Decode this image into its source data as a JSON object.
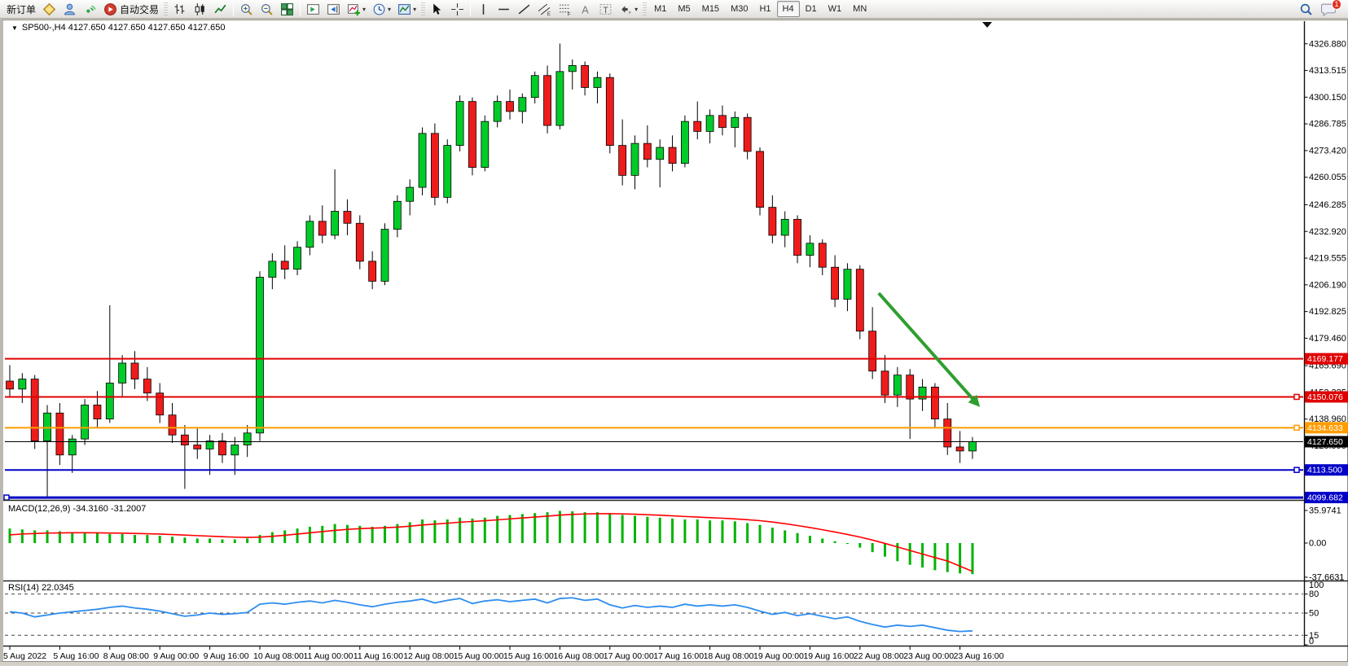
{
  "toolbar": {
    "new_order": "新订单",
    "autotrade": "自动交易",
    "timeframes": [
      "M1",
      "M5",
      "M15",
      "M30",
      "H1",
      "H4",
      "D1",
      "W1",
      "MN"
    ],
    "active_timeframe": "H4",
    "notification_count": "1"
  },
  "window": {
    "title": "SP500-,H4  4127.650 4127.650 4127.650 4127.650"
  },
  "chart_data": {
    "type": "candlestick",
    "symbol": "SP500-",
    "timeframe": "H4",
    "quote_line": "4127.650 4127.650 4127.650 4127.650",
    "price_axis": {
      "max": 4332.5,
      "min": 4098.9,
      "ticks": [
        "4326.880",
        "4313.515",
        "4300.150",
        "4286.785",
        "4273.420",
        "4260.055",
        "4246.285",
        "4232.920",
        "4219.555",
        "4206.190",
        "4192.825",
        "4179.460",
        "4165.690",
        "4152.325",
        "4138.960",
        "4125.595",
        "4112.230",
        "4098.865"
      ]
    },
    "hlines": [
      {
        "price": 4169.177,
        "label": "4169.177",
        "color": "#e00000",
        "width": 2,
        "handle": "none"
      },
      {
        "price": 4150.076,
        "label": "4150.076",
        "color": "#e00000",
        "width": 2,
        "handle": "right"
      },
      {
        "price": 4134.633,
        "label": "4134.633",
        "color": "#ff9c00",
        "width": 2,
        "handle": "right"
      },
      {
        "price": 4127.65,
        "label": "4127.650",
        "color": "#000000",
        "width": 1,
        "handle": "none"
      },
      {
        "price": 4113.5,
        "label": "4113.500",
        "color": "#0000c8",
        "width": 2,
        "handle": "right"
      },
      {
        "price": 4099.682,
        "label": "4099.682",
        "color": "#0000c8",
        "width": 3,
        "handle": "left"
      }
    ],
    "candles": [
      [
        4158,
        4166,
        4150,
        4154
      ],
      [
        4154,
        4162,
        4147,
        4159
      ],
      [
        4159,
        4161,
        4124,
        4128
      ],
      [
        4128,
        4146,
        4100,
        4142
      ],
      [
        4142,
        4147,
        4116,
        4121
      ],
      [
        4121,
        4131,
        4112,
        4129
      ],
      [
        4129,
        4149,
        4126,
        4146
      ],
      [
        4146,
        4153,
        4135,
        4139
      ],
      [
        4139,
        4196,
        4137,
        4157
      ],
      [
        4157,
        4171,
        4150,
        4167
      ],
      [
        4167,
        4173,
        4154,
        4159
      ],
      [
        4159,
        4165,
        4148,
        4152
      ],
      [
        4152,
        4157,
        4137,
        4141
      ],
      [
        4141,
        4147,
        4127,
        4131
      ],
      [
        4131,
        4136,
        4104,
        4126
      ],
      [
        4126,
        4135,
        4119,
        4124
      ],
      [
        4124,
        4131,
        4111,
        4128
      ],
      [
        4128,
        4132,
        4117,
        4121
      ],
      [
        4121,
        4130,
        4111,
        4126
      ],
      [
        4126,
        4136,
        4120,
        4132
      ],
      [
        4132,
        4213,
        4128,
        4210
      ],
      [
        4210,
        4222,
        4204,
        4218
      ],
      [
        4218,
        4226,
        4209,
        4214
      ],
      [
        4214,
        4228,
        4211,
        4225
      ],
      [
        4225,
        4241,
        4221,
        4238
      ],
      [
        4238,
        4246,
        4227,
        4231
      ],
      [
        4231,
        4264,
        4229,
        4243
      ],
      [
        4243,
        4249,
        4231,
        4237
      ],
      [
        4237,
        4241,
        4214,
        4218
      ],
      [
        4218,
        4223,
        4204,
        4208
      ],
      [
        4208,
        4237,
        4206,
        4234
      ],
      [
        4234,
        4251,
        4230,
        4248
      ],
      [
        4248,
        4259,
        4241,
        4255
      ],
      [
        4255,
        4285,
        4251,
        4282
      ],
      [
        4282,
        4287,
        4246,
        4250
      ],
      [
        4250,
        4279,
        4247,
        4276
      ],
      [
        4276,
        4301,
        4273,
        4298
      ],
      [
        4298,
        4300,
        4261,
        4265
      ],
      [
        4265,
        4291,
        4263,
        4288
      ],
      [
        4288,
        4301,
        4285,
        4298
      ],
      [
        4298,
        4304,
        4289,
        4293
      ],
      [
        4293,
        4302,
        4287,
        4300
      ],
      [
        4300,
        4313,
        4297,
        4311
      ],
      [
        4311,
        4316,
        4282,
        4286
      ],
      [
        4286,
        4327,
        4284,
        4313
      ],
      [
        4313,
        4319,
        4304,
        4316
      ],
      [
        4316,
        4318,
        4301,
        4305
      ],
      [
        4305,
        4313,
        4297,
        4310
      ],
      [
        4310,
        4312,
        4272,
        4276
      ],
      [
        4276,
        4289,
        4256,
        4261
      ],
      [
        4261,
        4281,
        4254,
        4277
      ],
      [
        4277,
        4286,
        4265,
        4269
      ],
      [
        4269,
        4279,
        4255,
        4275
      ],
      [
        4275,
        4281,
        4263,
        4267
      ],
      [
        4267,
        4291,
        4265,
        4288
      ],
      [
        4288,
        4298,
        4279,
        4283
      ],
      [
        4283,
        4294,
        4277,
        4291
      ],
      [
        4291,
        4296,
        4281,
        4285
      ],
      [
        4285,
        4293,
        4275,
        4290
      ],
      [
        4290,
        4292,
        4269,
        4273
      ],
      [
        4273,
        4275,
        4241,
        4245
      ],
      [
        4245,
        4251,
        4227,
        4231
      ],
      [
        4231,
        4243,
        4225,
        4239
      ],
      [
        4239,
        4241,
        4217,
        4221
      ],
      [
        4221,
        4231,
        4215,
        4227
      ],
      [
        4227,
        4229,
        4211,
        4215
      ],
      [
        4215,
        4221,
        4195,
        4199
      ],
      [
        4199,
        4217,
        4193,
        4214
      ],
      [
        4214,
        4216,
        4179,
        4183
      ],
      [
        4183,
        4195,
        4159,
        4163
      ],
      [
        4163,
        4171,
        4147,
        4151
      ],
      [
        4151,
        4165,
        4145,
        4161
      ],
      [
        4161,
        4164,
        4129,
        4149
      ],
      [
        4149,
        4159,
        4143,
        4155
      ],
      [
        4155,
        4157,
        4135,
        4139
      ],
      [
        4139,
        4147,
        4121,
        4125
      ],
      [
        4125,
        4133,
        4117,
        4123
      ],
      [
        4123,
        4130,
        4119,
        4127.65
      ]
    ],
    "macd": {
      "label": "MACD(12,26,9) -34.3160 -31.2007",
      "ticks": [
        {
          "v": 35.9741,
          "label": "35.9741"
        },
        {
          "v": 0,
          "label": "0.00"
        },
        {
          "v": -37.6631,
          "label": "-37.6631"
        }
      ],
      "hist_color": "#00b400",
      "signal_color": "#ff0000",
      "hist": [
        16,
        15,
        14,
        14,
        13,
        12,
        12,
        11,
        10,
        10,
        9,
        9,
        8,
        7,
        6,
        5,
        5,
        4,
        4,
        5,
        9,
        12,
        14,
        16,
        18,
        19,
        21,
        20,
        19,
        18,
        19,
        21,
        23,
        26,
        25,
        26,
        28,
        27,
        28,
        30,
        31,
        32,
        33,
        34,
        35.5,
        35,
        34,
        34,
        33,
        31,
        30,
        29,
        28,
        27,
        26,
        26,
        25,
        25,
        24,
        22,
        20,
        17,
        14,
        11,
        8,
        5,
        2,
        -1,
        -5,
        -10,
        -15,
        -20,
        -24,
        -27,
        -30,
        -32,
        -33.5,
        -34.316
      ],
      "signal": [
        9,
        10,
        10.5,
        11,
        11.2,
        11.4,
        11.4,
        11.3,
        11.1,
        10.9,
        10.6,
        10.3,
        9.9,
        9.4,
        8.8,
        8.2,
        7.6,
        7,
        6.5,
        6.2,
        6.6,
        7.5,
        8.6,
        9.9,
        11.3,
        12.6,
        14,
        15.1,
        15.9,
        16.4,
        16.9,
        17.6,
        18.6,
        19.9,
        20.9,
        21.9,
        23,
        23.8,
        24.6,
        25.6,
        26.6,
        27.7,
        28.7,
        29.7,
        30.8,
        31.6,
        32.1,
        32.4,
        32.4,
        32.2,
        31.8,
        31.3,
        30.7,
        30,
        29.3,
        28.7,
        28,
        27.4,
        26.7,
        25.8,
        24.7,
        23.2,
        21.4,
        19.3,
        17.1,
        14.7,
        12.2,
        9.5,
        6.6,
        3.3,
        -0.4,
        -4.3,
        -8.2,
        -12.1,
        -16,
        -19.8,
        -25.5,
        -31.2
      ]
    },
    "rsi": {
      "label": "RSI(14) 22.0345",
      "color": "#2e8def",
      "levels": [
        80,
        50,
        15
      ],
      "ticks": [
        {
          "v": 100,
          "label": "100"
        },
        {
          "v": 80,
          "label": "80"
        },
        {
          "v": 50,
          "label": "50"
        },
        {
          "v": 15,
          "label": "15"
        },
        {
          "v": 0,
          "label": "0"
        }
      ],
      "values": [
        52,
        50,
        44,
        47,
        50,
        52,
        54,
        56,
        59,
        61,
        58,
        56,
        53,
        49,
        45,
        47,
        50,
        48,
        49,
        51,
        64,
        66,
        64,
        67,
        69,
        66,
        70,
        67,
        63,
        60,
        64,
        67,
        69,
        72,
        66,
        70,
        73,
        65,
        69,
        71,
        68,
        70,
        72,
        66,
        73,
        74,
        70,
        72,
        63,
        58,
        62,
        59,
        61,
        59,
        64,
        61,
        63,
        61,
        63,
        59,
        53,
        48,
        51,
        46,
        49,
        45,
        41,
        44,
        37,
        32,
        28,
        31,
        29,
        31,
        27,
        23,
        21,
        22.0345
      ]
    },
    "time_axis": [
      "5 Aug 2022",
      "5 Aug 16:00",
      "8 Aug 08:00",
      "9 Aug 00:00",
      "9 Aug 16:00",
      "10 Aug 08:00",
      "11 Aug 00:00",
      "11 Aug 16:00",
      "12 Aug 08:00",
      "15 Aug 00:00",
      "15 Aug 16:00",
      "16 Aug 08:00",
      "17 Aug 00:00",
      "17 Aug 16:00",
      "18 Aug 08:00",
      "19 Aug 00:00",
      "19 Aug 16:00",
      "22 Aug 08:00",
      "23 Aug 00:00",
      "23 Aug 16:00"
    ],
    "colors": {
      "up": "#00cc29",
      "down": "#ef1c1c",
      "wick": "#000000",
      "outline": "#000000"
    },
    "annotation_arrow": {
      "from_bar": 69.5,
      "from_price": 4202,
      "to_bar": 77.6,
      "to_price": 4145,
      "color": "#2f9e2f"
    }
  }
}
